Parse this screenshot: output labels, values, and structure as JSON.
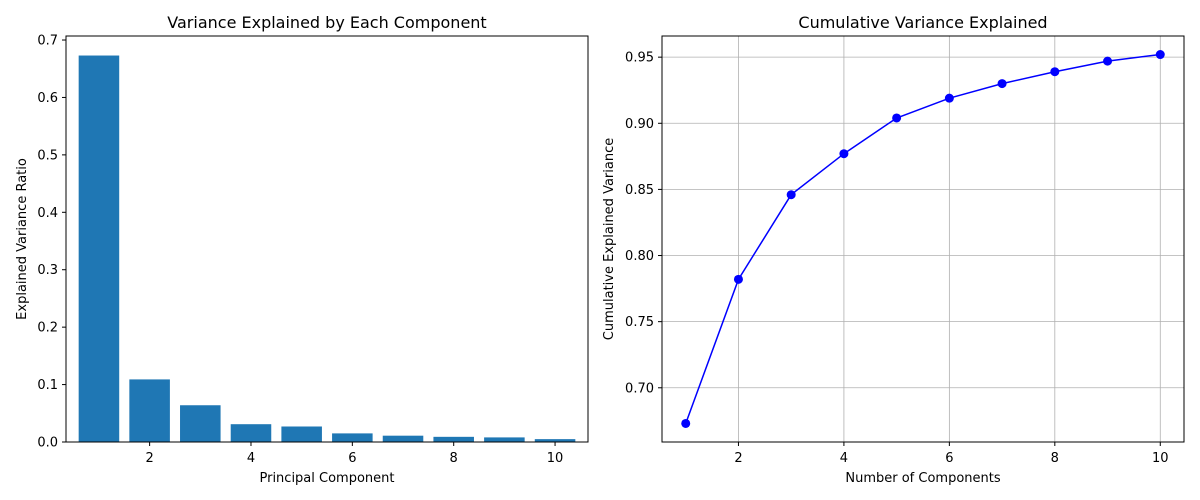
{
  "chart_data": [
    {
      "type": "bar",
      "title": "Variance Explained by Each Component",
      "xlabel": "Principal Component",
      "ylabel": "Explained Variance Ratio",
      "x": [
        1,
        2,
        3,
        4,
        5,
        6,
        7,
        8,
        9,
        10
      ],
      "values": [
        0.673,
        0.109,
        0.064,
        0.031,
        0.027,
        0.015,
        0.011,
        0.009,
        0.008,
        0.005
      ],
      "xlim": [
        0.35,
        10.65
      ],
      "ylim": [
        0,
        0.707
      ],
      "xticks": [
        2,
        4,
        6,
        8,
        10
      ],
      "xtick_labels": [
        "2",
        "4",
        "6",
        "8",
        "10"
      ],
      "yticks": [
        0,
        0.1,
        0.2,
        0.3,
        0.4,
        0.5,
        0.6,
        0.7
      ],
      "ytick_labels": [
        "0.0",
        "0.1",
        "0.2",
        "0.3",
        "0.4",
        "0.5",
        "0.6",
        "0.7"
      ],
      "grid": false,
      "color": "#1f77b4"
    },
    {
      "type": "line",
      "title": "Cumulative Variance Explained",
      "xlabel": "Number of Components",
      "ylabel": "Cumulative Explained Variance",
      "x": [
        1,
        2,
        3,
        4,
        5,
        6,
        7,
        8,
        9,
        10
      ],
      "values": [
        0.673,
        0.782,
        0.846,
        0.877,
        0.904,
        0.919,
        0.93,
        0.939,
        0.947,
        0.952
      ],
      "xlim": [
        0.55,
        10.45
      ],
      "ylim": [
        0.659,
        0.966
      ],
      "xticks": [
        2,
        4,
        6,
        8,
        10
      ],
      "xtick_labels": [
        "2",
        "4",
        "6",
        "8",
        "10"
      ],
      "yticks": [
        0.7,
        0.75,
        0.8,
        0.85,
        0.9,
        0.95
      ],
      "ytick_labels": [
        "0.70",
        "0.75",
        "0.80",
        "0.85",
        "0.90",
        "0.95"
      ],
      "grid": true,
      "marker": "circle",
      "color": "#0000ff"
    }
  ]
}
